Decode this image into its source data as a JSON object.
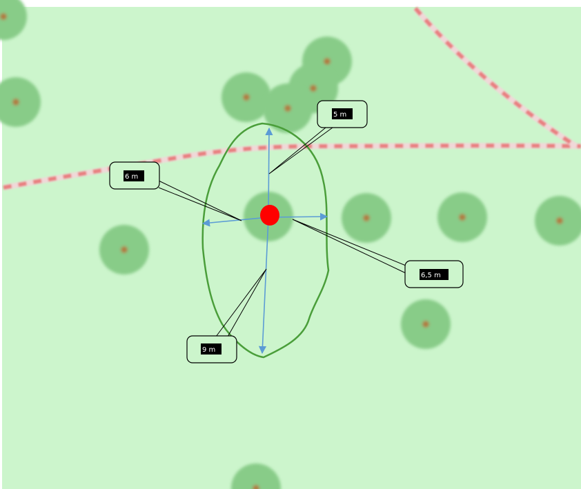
{
  "map": {
    "colors": {
      "background": "#ccf5cc",
      "tree_canopy": "#88cc88",
      "tree_trunk": "#b07a40",
      "path_dash": "#e88080",
      "outline": "#4a9e3a",
      "arrow": "#5b9bd5",
      "center_marker": "#ff0000",
      "label_bg": "#000000",
      "label_text": "#ffffff"
    },
    "measurements": [
      {
        "id": "north",
        "label": "5 m"
      },
      {
        "id": "west",
        "label": "6 m"
      },
      {
        "id": "east",
        "label": "6,5 m"
      },
      {
        "id": "south",
        "label": "9 m"
      }
    ]
  }
}
